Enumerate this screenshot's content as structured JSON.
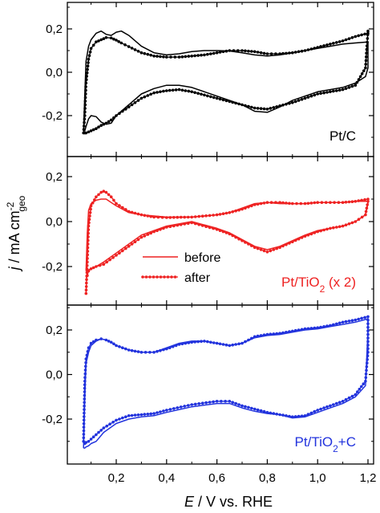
{
  "figure": {
    "ylabel_main": "j",
    "ylabel_unit": " / mA cm",
    "ylabel_sup": "-2",
    "ylabel_sub": "geo",
    "xlabel_main": "E",
    "xlabel_unit": " / V vs. RHE",
    "xticks": [
      "0,2",
      "0,4",
      "0,6",
      "0,8",
      "1,0",
      "1,2"
    ],
    "yticks": [
      "0,2",
      "0,0",
      "-0,2"
    ],
    "legend": {
      "solid": "before",
      "dotted": "after"
    }
  },
  "panels": [
    {
      "label_html": "Pt/C",
      "color": "#000000"
    },
    {
      "label_html": "Pt/TiO<tspan baseline-shift=\"sub\" font-size=\"12\">2</tspan> (x 2)",
      "color": "#ee2222"
    },
    {
      "label_html": "Pt/TiO<tspan baseline-shift=\"sub\" font-size=\"12\">2</tspan>+C",
      "color": "#2233dd"
    }
  ],
  "chart_data": [
    {
      "type": "line",
      "panel": "Pt/C",
      "xlabel": "E / V vs. RHE",
      "ylabel": "j / mA cm-2 geo",
      "xlim": [
        0.03,
        1.22
      ],
      "ylim": [
        -0.32,
        0.32
      ],
      "color": "#000000",
      "series": [
        {
          "name": "before",
          "style": "solid",
          "x": [
            0.07,
            0.075,
            0.08,
            0.09,
            0.1,
            0.12,
            0.14,
            0.16,
            0.18,
            0.2,
            0.22,
            0.25,
            0.3,
            0.35,
            0.4,
            0.45,
            0.5,
            0.55,
            0.6,
            0.65,
            0.7,
            0.75,
            0.8,
            0.85,
            0.9,
            0.95,
            1.0,
            1.05,
            1.1,
            1.15,
            1.2,
            1.2,
            1.19,
            1.15,
            1.1,
            1.05,
            1.0,
            0.95,
            0.9,
            0.85,
            0.8,
            0.75,
            0.7,
            0.65,
            0.6,
            0.55,
            0.5,
            0.45,
            0.4,
            0.35,
            0.3,
            0.25,
            0.2,
            0.18,
            0.16,
            0.14,
            0.12,
            0.1,
            0.09,
            0.08,
            0.075,
            0.07
          ],
          "y": [
            -0.27,
            -0.1,
            0.05,
            0.12,
            0.15,
            0.18,
            0.19,
            0.175,
            0.17,
            0.185,
            0.19,
            0.17,
            0.12,
            0.09,
            0.08,
            0.085,
            0.095,
            0.1,
            0.1,
            0.098,
            0.09,
            0.08,
            0.075,
            0.08,
            0.09,
            0.1,
            0.11,
            0.12,
            0.13,
            0.135,
            0.14,
            0.02,
            -0.02,
            -0.05,
            -0.07,
            -0.08,
            -0.09,
            -0.11,
            -0.13,
            -0.16,
            -0.185,
            -0.18,
            -0.15,
            -0.13,
            -0.11,
            -0.09,
            -0.07,
            -0.06,
            -0.06,
            -0.075,
            -0.1,
            -0.15,
            -0.2,
            -0.235,
            -0.24,
            -0.23,
            -0.205,
            -0.2,
            -0.215,
            -0.25,
            -0.27,
            -0.27
          ]
        },
        {
          "name": "after",
          "style": "dotted",
          "x": [
            0.07,
            0.075,
            0.08,
            0.09,
            0.1,
            0.12,
            0.14,
            0.16,
            0.18,
            0.2,
            0.22,
            0.25,
            0.3,
            0.35,
            0.4,
            0.45,
            0.5,
            0.55,
            0.6,
            0.65,
            0.7,
            0.75,
            0.8,
            0.85,
            0.9,
            0.95,
            1.0,
            1.05,
            1.1,
            1.15,
            1.2,
            1.2,
            1.19,
            1.15,
            1.1,
            1.05,
            1.0,
            0.95,
            0.9,
            0.85,
            0.8,
            0.75,
            0.7,
            0.65,
            0.6,
            0.55,
            0.5,
            0.45,
            0.4,
            0.35,
            0.3,
            0.25,
            0.2,
            0.18,
            0.16,
            0.14,
            0.12,
            0.1,
            0.09,
            0.08,
            0.075,
            0.07
          ],
          "y": [
            -0.28,
            -0.2,
            -0.05,
            0.06,
            0.11,
            0.14,
            0.15,
            0.16,
            0.158,
            0.148,
            0.135,
            0.118,
            0.09,
            0.075,
            0.07,
            0.07,
            0.075,
            0.08,
            0.09,
            0.1,
            0.1,
            0.095,
            0.085,
            0.085,
            0.09,
            0.1,
            0.115,
            0.13,
            0.145,
            0.165,
            0.18,
            0.19,
            0.02,
            -0.06,
            -0.08,
            -0.09,
            -0.1,
            -0.12,
            -0.14,
            -0.155,
            -0.17,
            -0.165,
            -0.15,
            -0.135,
            -0.12,
            -0.105,
            -0.09,
            -0.08,
            -0.085,
            -0.095,
            -0.12,
            -0.16,
            -0.2,
            -0.22,
            -0.235,
            -0.245,
            -0.26,
            -0.27,
            -0.275,
            -0.28,
            -0.28,
            -0.28
          ]
        }
      ]
    },
    {
      "type": "line",
      "panel": "Pt/TiO2 (x 2)",
      "xlabel": "E / V vs. RHE",
      "ylabel": "j / mA cm-2 geo",
      "xlim": [
        0.03,
        1.22
      ],
      "ylim": [
        -0.36,
        0.3
      ],
      "color": "#ee2222",
      "series": [
        {
          "name": "before",
          "style": "solid",
          "x": [
            0.08,
            0.085,
            0.09,
            0.1,
            0.12,
            0.14,
            0.16,
            0.18,
            0.2,
            0.25,
            0.3,
            0.35,
            0.4,
            0.5,
            0.6,
            0.65,
            0.7,
            0.75,
            0.8,
            0.85,
            0.9,
            0.95,
            1.0,
            1.05,
            1.1,
            1.15,
            1.2,
            1.2,
            1.19,
            1.15,
            1.1,
            1.05,
            1.0,
            0.95,
            0.9,
            0.85,
            0.8,
            0.75,
            0.7,
            0.65,
            0.6,
            0.5,
            0.4,
            0.35,
            0.3,
            0.25,
            0.2,
            0.15,
            0.12,
            0.1,
            0.09,
            0.085,
            0.08
          ],
          "y": [
            -0.22,
            -0.05,
            0.05,
            0.08,
            0.095,
            0.1,
            0.1,
            0.085,
            0.07,
            0.04,
            0.03,
            0.025,
            0.02,
            0.02,
            0.03,
            0.04,
            0.06,
            0.08,
            0.085,
            0.08,
            0.08,
            0.08,
            0.085,
            0.085,
            0.085,
            0.09,
            0.09,
            0.08,
            0.03,
            0.0,
            -0.02,
            -0.03,
            -0.04,
            -0.06,
            -0.085,
            -0.11,
            -0.125,
            -0.11,
            -0.08,
            -0.05,
            -0.03,
            0.0,
            -0.02,
            -0.04,
            -0.06,
            -0.1,
            -0.14,
            -0.18,
            -0.2,
            -0.21,
            -0.215,
            -0.22,
            -0.22
          ]
        },
        {
          "name": "after",
          "style": "dotted",
          "x": [
            0.08,
            0.085,
            0.09,
            0.1,
            0.12,
            0.14,
            0.15,
            0.16,
            0.18,
            0.2,
            0.25,
            0.3,
            0.35,
            0.4,
            0.5,
            0.6,
            0.65,
            0.7,
            0.75,
            0.8,
            0.85,
            0.9,
            0.95,
            1.0,
            1.05,
            1.1,
            1.15,
            1.2,
            1.2,
            1.19,
            1.15,
            1.1,
            1.05,
            1.0,
            0.95,
            0.9,
            0.85,
            0.8,
            0.75,
            0.7,
            0.65,
            0.6,
            0.5,
            0.4,
            0.35,
            0.3,
            0.25,
            0.2,
            0.15,
            0.12,
            0.1,
            0.09,
            0.085,
            0.08
          ],
          "y": [
            -0.32,
            -0.18,
            -0.02,
            0.07,
            0.11,
            0.13,
            0.135,
            0.13,
            0.11,
            0.08,
            0.045,
            0.03,
            0.02,
            0.018,
            0.02,
            0.03,
            0.04,
            0.055,
            0.075,
            0.085,
            0.085,
            0.08,
            0.08,
            0.085,
            0.085,
            0.085,
            0.09,
            0.1,
            0.09,
            0.03,
            0.0,
            -0.02,
            -0.03,
            -0.045,
            -0.065,
            -0.09,
            -0.115,
            -0.135,
            -0.115,
            -0.085,
            -0.055,
            -0.035,
            -0.005,
            -0.025,
            -0.045,
            -0.07,
            -0.11,
            -0.15,
            -0.19,
            -0.2,
            -0.21,
            -0.22,
            -0.24,
            -0.25
          ]
        }
      ]
    },
    {
      "type": "line",
      "panel": "Pt/TiO2+C",
      "xlabel": "E / V vs. RHE",
      "ylabel": "j / mA cm-2 geo",
      "xlim": [
        0.03,
        1.22
      ],
      "ylim": [
        -0.36,
        0.32
      ],
      "color": "#2233dd",
      "series": [
        {
          "name": "before",
          "style": "solid",
          "x": [
            0.07,
            0.075,
            0.08,
            0.09,
            0.1,
            0.12,
            0.14,
            0.16,
            0.18,
            0.2,
            0.25,
            0.3,
            0.35,
            0.4,
            0.45,
            0.5,
            0.55,
            0.6,
            0.65,
            0.7,
            0.75,
            0.8,
            0.85,
            0.9,
            0.95,
            1.0,
            1.05,
            1.1,
            1.15,
            1.2,
            1.2,
            1.19,
            1.15,
            1.1,
            1.05,
            1.0,
            0.95,
            0.9,
            0.85,
            0.8,
            0.75,
            0.7,
            0.65,
            0.6,
            0.5,
            0.4,
            0.35,
            0.3,
            0.25,
            0.2,
            0.15,
            0.12,
            0.1,
            0.09,
            0.08,
            0.075,
            0.07
          ],
          "y": [
            -0.33,
            -0.1,
            0.05,
            0.1,
            0.13,
            0.15,
            0.16,
            0.155,
            0.145,
            0.13,
            0.11,
            0.1,
            0.1,
            0.12,
            0.14,
            0.15,
            0.15,
            0.14,
            0.13,
            0.14,
            0.165,
            0.175,
            0.18,
            0.19,
            0.2,
            0.205,
            0.215,
            0.225,
            0.235,
            0.25,
            0.2,
            -0.05,
            -0.1,
            -0.13,
            -0.15,
            -0.17,
            -0.19,
            -0.195,
            -0.18,
            -0.175,
            -0.165,
            -0.15,
            -0.13,
            -0.13,
            -0.145,
            -0.17,
            -0.185,
            -0.19,
            -0.2,
            -0.22,
            -0.26,
            -0.3,
            -0.31,
            -0.32,
            -0.325,
            -0.33,
            -0.33
          ]
        },
        {
          "name": "after",
          "style": "dotted",
          "x": [
            0.07,
            0.075,
            0.08,
            0.09,
            0.1,
            0.12,
            0.14,
            0.16,
            0.18,
            0.2,
            0.25,
            0.3,
            0.35,
            0.4,
            0.45,
            0.5,
            0.55,
            0.6,
            0.65,
            0.7,
            0.75,
            0.8,
            0.85,
            0.9,
            0.95,
            1.0,
            1.05,
            1.1,
            1.15,
            1.2,
            1.2,
            1.19,
            1.15,
            1.1,
            1.05,
            1.0,
            0.95,
            0.9,
            0.85,
            0.8,
            0.75,
            0.7,
            0.65,
            0.6,
            0.5,
            0.4,
            0.35,
            0.3,
            0.25,
            0.2,
            0.15,
            0.12,
            0.1,
            0.09,
            0.08,
            0.075,
            0.07
          ],
          "y": [
            -0.3,
            -0.03,
            0.07,
            0.12,
            0.14,
            0.155,
            0.16,
            0.155,
            0.145,
            0.13,
            0.11,
            0.1,
            0.1,
            0.115,
            0.135,
            0.145,
            0.15,
            0.14,
            0.13,
            0.14,
            0.17,
            0.18,
            0.185,
            0.195,
            0.205,
            0.21,
            0.22,
            0.235,
            0.245,
            0.26,
            0.1,
            -0.03,
            -0.09,
            -0.12,
            -0.14,
            -0.16,
            -0.185,
            -0.19,
            -0.18,
            -0.17,
            -0.155,
            -0.14,
            -0.12,
            -0.12,
            -0.135,
            -0.16,
            -0.175,
            -0.18,
            -0.185,
            -0.205,
            -0.24,
            -0.27,
            -0.29,
            -0.3,
            -0.305,
            -0.31,
            -0.31
          ]
        }
      ]
    }
  ]
}
